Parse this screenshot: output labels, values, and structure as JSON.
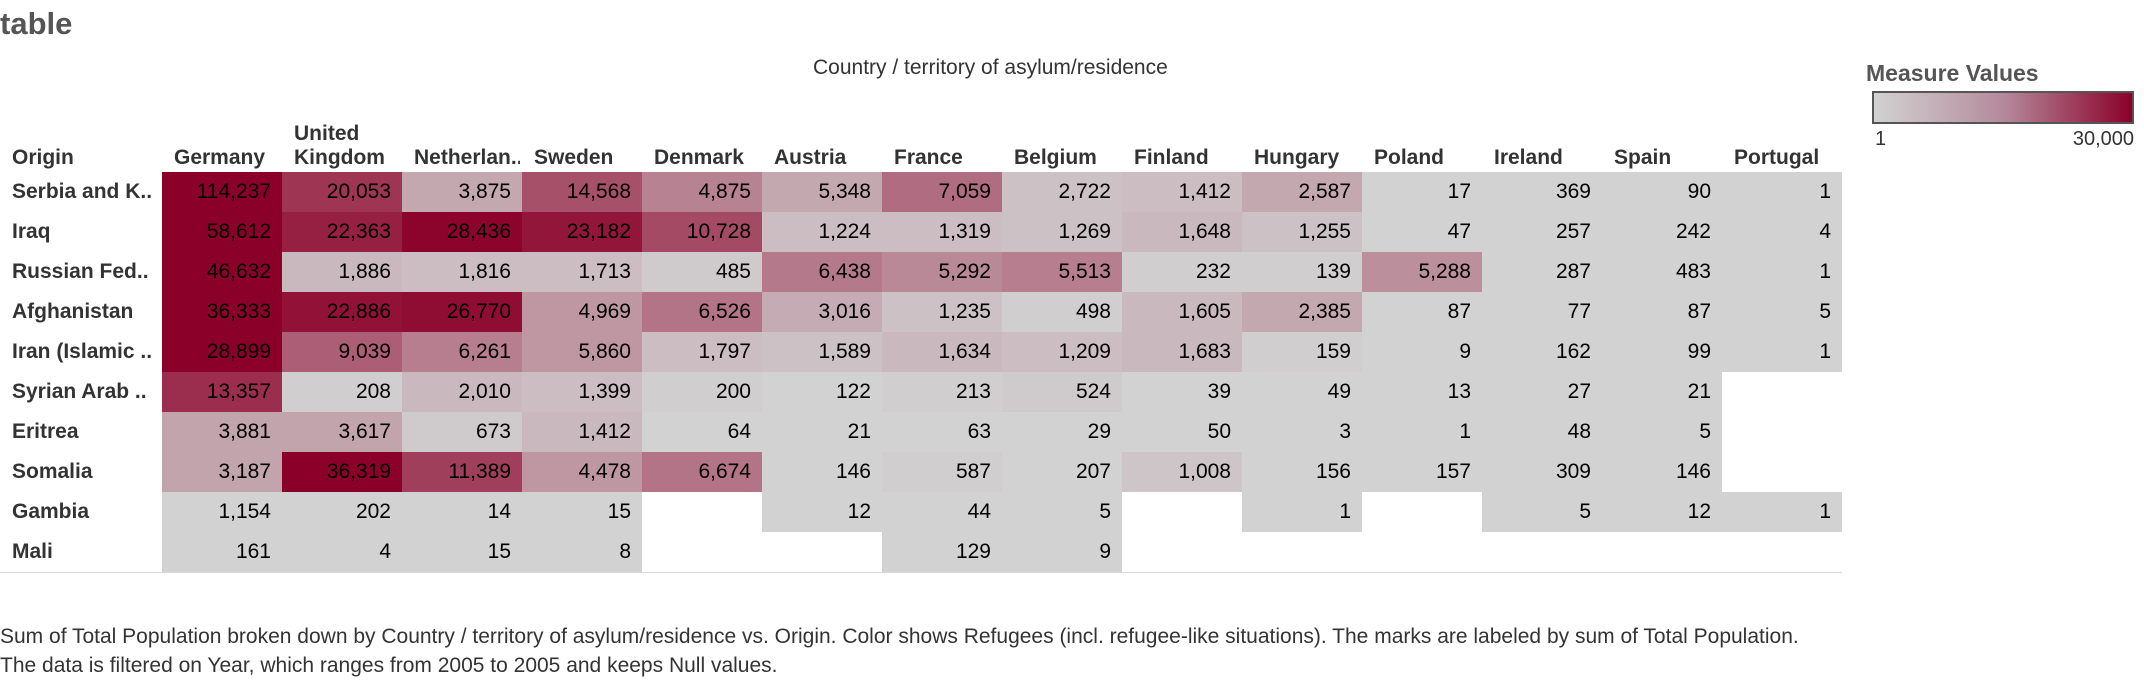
{
  "page": {
    "sheet_title": "table",
    "caption": "Sum of Total Population broken down by Country / territory of asylum/residence vs. Origin.  Color shows Refugees (incl. refugee-like situations).  The marks are labeled by sum of Total Population. The data is filtered on Year, which ranges from 2005 to 2005 and keeps Null values."
  },
  "legend": {
    "title": "Measure Values",
    "min_label": "1",
    "max_label": "30,000",
    "color_low": "#d2d2d2",
    "color_high": "#8b0029"
  },
  "chart_data": {
    "type": "heatmap",
    "column_group_title": "Country / territory of asylum/residence",
    "row_header": "Origin",
    "columns": [
      "Germany",
      "United\nKingdom",
      "Netherlan..",
      "Sweden",
      "Denmark",
      "Austria",
      "France",
      "Belgium",
      "Finland",
      "Hungary",
      "Poland",
      "Ireland",
      "Spain",
      "Portugal"
    ],
    "rows": [
      "Serbia and K..",
      "Iraq",
      "Russian Fed..",
      "Afghanistan",
      "Iran (Islamic ..",
      "Syrian Arab ..",
      "Eritrea",
      "Somalia",
      "Gambia",
      "Mali"
    ],
    "labels": [
      [
        "114,237",
        "20,053",
        "3,875",
        "14,568",
        "4,875",
        "5,348",
        "7,059",
        "2,722",
        "1,412",
        "2,587",
        "17",
        "369",
        "90",
        "1"
      ],
      [
        "58,612",
        "22,363",
        "28,436",
        "23,182",
        "10,728",
        "1,224",
        "1,319",
        "1,269",
        "1,648",
        "1,255",
        "47",
        "257",
        "242",
        "4"
      ],
      [
        "46,632",
        "1,886",
        "1,816",
        "1,713",
        "485",
        "6,438",
        "5,292",
        "5,513",
        "232",
        "139",
        "5,288",
        "287",
        "483",
        "1"
      ],
      [
        "36,333",
        "22,886",
        "26,770",
        "4,969",
        "6,526",
        "3,016",
        "1,235",
        "498",
        "1,605",
        "2,385",
        "87",
        "77",
        "87",
        "5"
      ],
      [
        "28,899",
        "9,039",
        "6,261",
        "5,860",
        "1,797",
        "1,589",
        "1,634",
        "1,209",
        "1,683",
        "159",
        "9",
        "162",
        "99",
        "1"
      ],
      [
        "13,357",
        "208",
        "2,010",
        "1,399",
        "200",
        "122",
        "213",
        "524",
        "39",
        "49",
        "13",
        "27",
        "21",
        null
      ],
      [
        "3,881",
        "3,617",
        "673",
        "1,412",
        "64",
        "21",
        "63",
        "29",
        "50",
        "3",
        "1",
        "48",
        "5",
        null
      ],
      [
        "3,187",
        "36,319",
        "11,389",
        "4,478",
        "6,674",
        "146",
        "587",
        "207",
        "1,008",
        "156",
        "157",
        "309",
        "146",
        null
      ],
      [
        "1,154",
        "202",
        "14",
        "15",
        null,
        "12",
        "44",
        "5",
        null,
        "1",
        null,
        "5",
        "12",
        "1"
      ],
      [
        "161",
        "4",
        "15",
        "8",
        null,
        null,
        "129",
        "9",
        null,
        null,
        null,
        null,
        null,
        null
      ]
    ],
    "color_intensity": [
      [
        1.0,
        0.75,
        0.2,
        0.62,
        0.38,
        0.2,
        0.48,
        0.08,
        0.1,
        0.2,
        0.0,
        0.0,
        0.0,
        0.0
      ],
      [
        1.0,
        0.85,
        0.98,
        0.9,
        0.65,
        0.1,
        0.1,
        0.08,
        0.12,
        0.08,
        0.0,
        0.0,
        0.0,
        0.0
      ],
      [
        1.0,
        0.12,
        0.1,
        0.1,
        0.04,
        0.42,
        0.35,
        0.4,
        0.02,
        0.02,
        0.32,
        0.0,
        0.0,
        0.0
      ],
      [
        1.0,
        0.92,
        0.94,
        0.28,
        0.45,
        0.18,
        0.08,
        0.02,
        0.12,
        0.2,
        0.0,
        0.0,
        0.0,
        0.0
      ],
      [
        1.0,
        0.55,
        0.4,
        0.28,
        0.1,
        0.08,
        0.12,
        0.1,
        0.12,
        0.02,
        0.0,
        0.0,
        0.0,
        0.0
      ],
      [
        0.78,
        0.02,
        0.12,
        0.1,
        0.02,
        0.0,
        0.02,
        0.04,
        0.0,
        0.0,
        0.0,
        0.0,
        0.0,
        0.0
      ],
      [
        0.22,
        0.22,
        0.04,
        0.12,
        0.0,
        0.0,
        0.0,
        0.0,
        0.0,
        0.0,
        0.0,
        0.0,
        0.0,
        0.0
      ],
      [
        0.22,
        1.0,
        0.7,
        0.28,
        0.45,
        0.0,
        0.02,
        0.0,
        0.06,
        0.0,
        0.0,
        0.0,
        0.0,
        0.0
      ],
      [
        0.0,
        0.0,
        0.0,
        0.0,
        0.0,
        0.0,
        0.0,
        0.0,
        0.0,
        0.0,
        0.0,
        0.0,
        0.0,
        0.0
      ],
      [
        0.0,
        0.0,
        0.0,
        0.0,
        0.0,
        0.0,
        0.0,
        0.0,
        0.0,
        0.0,
        0.0,
        0.0,
        0.0,
        0.0
      ]
    ]
  }
}
